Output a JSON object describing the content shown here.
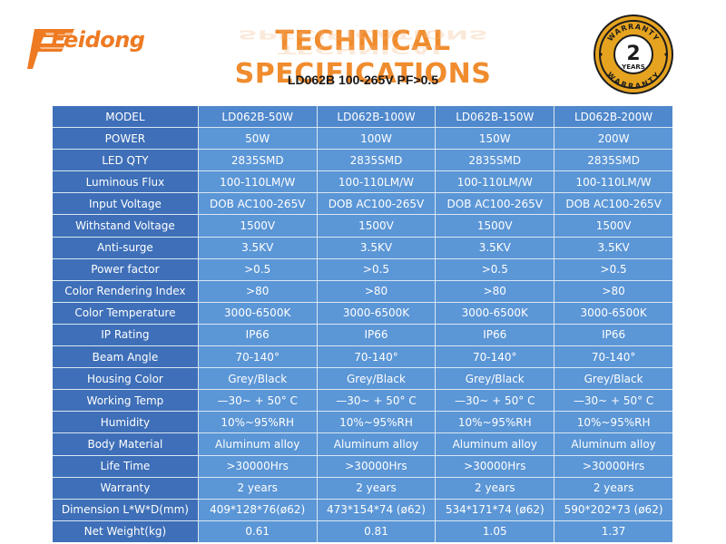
{
  "brand": {
    "logo_text": "Feidong",
    "logo_color": "#ee7a22"
  },
  "header": {
    "title": "TECHNICAL SPECIFICATIONS",
    "subtitle": "LD062B 100-265V PF>0.5",
    "title_color": "#f08c2e"
  },
  "warranty_badge": {
    "top_text": "WARRANTY",
    "number": "2",
    "years": "YEARS",
    "bottom_text": "WARRANTY",
    "colors": {
      "gold": "#e6a320",
      "dark": "#1c1c1c"
    }
  },
  "table": {
    "colors": {
      "label_bg": "#3e6fb8",
      "cell_bg": "#5b96d6",
      "border": "#d9e6f3"
    },
    "rows": [
      {
        "label": "MODEL",
        "values": [
          "LD062B-50W",
          "LD062B-100W",
          "LD062B-150W",
          "LD062B-200W"
        ]
      },
      {
        "label": "POWER",
        "values": [
          "50W",
          "100W",
          "150W",
          "200W"
        ]
      },
      {
        "label": "LED QTY",
        "values": [
          "2835SMD",
          "2835SMD",
          "2835SMD",
          "2835SMD"
        ]
      },
      {
        "label": "Luminous Flux",
        "values": [
          "100-110LM/W",
          "100-110LM/W",
          "100-110LM/W",
          "100-110LM/W"
        ]
      },
      {
        "label": "Input Voltage",
        "values": [
          "DOB AC100-265V",
          "DOB AC100-265V",
          "DOB AC100-265V",
          "DOB AC100-265V"
        ]
      },
      {
        "label": "Withstand Voltage",
        "values": [
          "1500V",
          "1500V",
          "1500V",
          "1500V"
        ]
      },
      {
        "label": "Anti-surge",
        "values": [
          "3.5KV",
          "3.5KV",
          "3.5KV",
          "3.5KV"
        ]
      },
      {
        "label": "Power factor",
        "values": [
          ">0.5",
          ">0.5",
          ">0.5",
          ">0.5"
        ]
      },
      {
        "label": "Color Rendering Index",
        "values": [
          ">80",
          ">80",
          ">80",
          ">80"
        ]
      },
      {
        "label": "Color Temperature",
        "values": [
          "3000-6500K",
          "3000-6500K",
          "3000-6500K",
          "3000-6500K"
        ]
      },
      {
        "label": "IP Rating",
        "values": [
          "IP66",
          "IP66",
          "IP66",
          "IP66"
        ]
      },
      {
        "label": "Beam Angle",
        "values": [
          "70-140°",
          "70-140°",
          "70-140°",
          "70-140°"
        ]
      },
      {
        "label": "Housing Color",
        "values": [
          "Grey/Black",
          "Grey/Black",
          "Grey/Black",
          "Grey/Black"
        ]
      },
      {
        "label": "Working Temp",
        "values": [
          "—30~ + 50° C",
          "—30~ + 50° C",
          "—30~ + 50° C",
          "—30~ + 50° C"
        ]
      },
      {
        "label": "Humidity",
        "values": [
          "10%~95%RH",
          "10%~95%RH",
          "10%~95%RH",
          "10%~95%RH"
        ]
      },
      {
        "label": "Body Material",
        "values": [
          "Aluminum alloy",
          "Aluminum alloy",
          "Aluminum alloy",
          "Aluminum alloy"
        ]
      },
      {
        "label": "Life Time",
        "values": [
          ">30000Hrs",
          ">30000Hrs",
          ">30000Hrs",
          ">30000Hrs"
        ]
      },
      {
        "label": "Warranty",
        "values": [
          "2 years",
          "2 years",
          "2 years",
          "2 years"
        ]
      },
      {
        "label": "Dimension L*W*D(mm)",
        "values": [
          "409*128*76(ø62)",
          "473*154*74 (ø62)",
          "534*171*74 (ø62)",
          "590*202*73 (ø62)"
        ]
      },
      {
        "label": "Net Weight(kg)",
        "values": [
          "0.61",
          "0.81",
          "1.05",
          "1.37"
        ]
      }
    ]
  }
}
